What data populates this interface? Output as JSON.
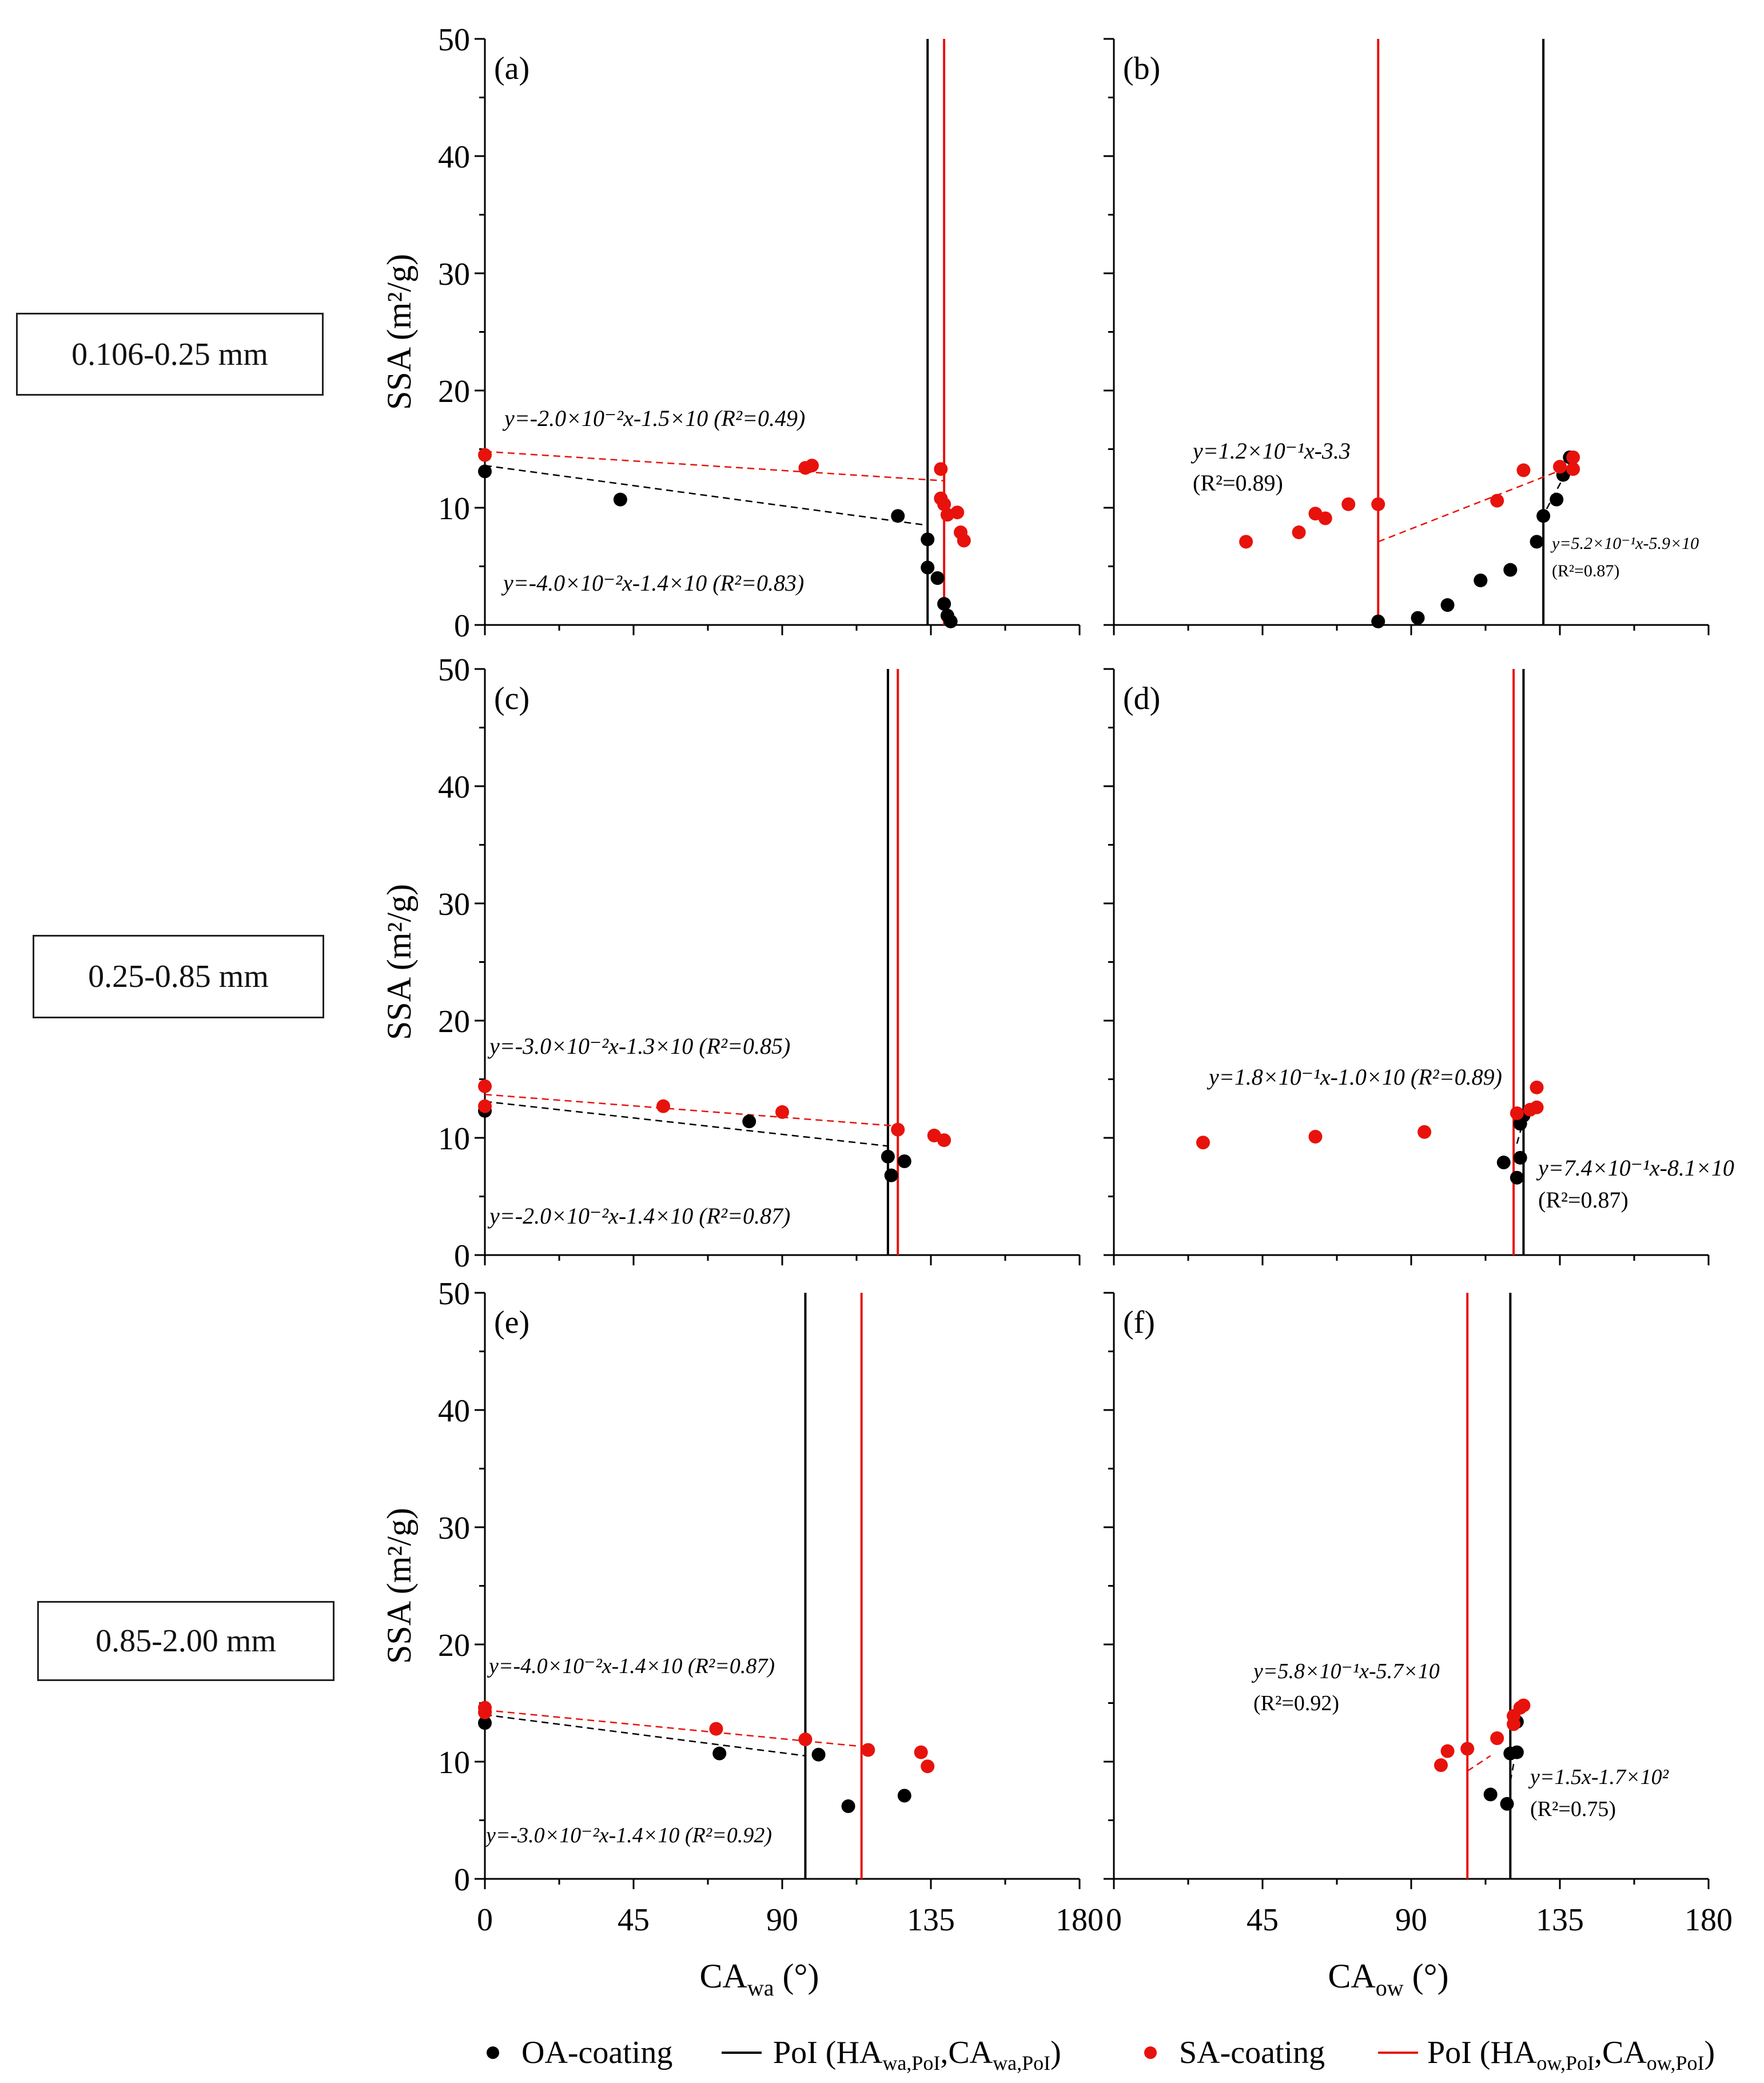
{
  "size_labels": [
    "0.106-0.25 mm",
    "0.25-0.85 mm",
    "0.85-2.00 mm"
  ],
  "legend": {
    "oa": "OA-coating",
    "poi_wa_prefix": "PoI (HA",
    "poi_wa_sub1": "wa,PoI",
    "poi_wa_mid": ",CA",
    "poi_wa_sub2": "wa,PoI",
    "poi_wa_suffix": ")",
    "sa": "SA-coating",
    "poi_ow_prefix": "PoI (HA",
    "poi_ow_sub1": "ow,PoI",
    "poi_ow_mid": ",CA",
    "poi_ow_sub2": "ow,PoI",
    "poi_ow_suffix": ")"
  },
  "colors": {
    "oa": "#000000",
    "sa": "#e8120c"
  },
  "chart_data": [
    {
      "panel": "(a)",
      "type": "scatter",
      "row": 0,
      "col": 0,
      "xlim": [
        0,
        180
      ],
      "ylim": [
        0,
        50
      ],
      "xticks": [],
      "ylabel": "SSA (m²/g)",
      "xlabel": "",
      "yticks": [
        "0",
        "10",
        "20",
        "30",
        "40",
        "50"
      ],
      "series": [
        {
          "name": "OA-coating",
          "color": "#000000",
          "points": [
            [
              0,
              13.1
            ],
            [
              41,
              10.7
            ],
            [
              125,
              9.3
            ],
            [
              134,
              7.3
            ],
            [
              134,
              4.9
            ],
            [
              137,
              4.0
            ],
            [
              139,
              1.8
            ],
            [
              140,
              0.8
            ],
            [
              141,
              0.3
            ]
          ]
        },
        {
          "name": "SA-coating",
          "color": "#e8120c",
          "points": [
            [
              0,
              14.5
            ],
            [
              97,
              13.4
            ],
            [
              99,
              13.6
            ],
            [
              138,
              13.3
            ],
            [
              138,
              10.8
            ],
            [
              139,
              10.3
            ],
            [
              140,
              9.4
            ],
            [
              143,
              9.6
            ],
            [
              144,
              7.9
            ],
            [
              145,
              7.2
            ]
          ]
        }
      ],
      "fits": [
        {
          "color": "#000000",
          "x": [
            0,
            134
          ],
          "y": [
            13.6,
            8.5
          ],
          "label": "y=-4.0×10⁻²x-1.4×10 (R²=0.83)"
        },
        {
          "color": "#e8120c",
          "x": [
            0,
            139
          ],
          "y": [
            14.8,
            12.3
          ],
          "label": "y=-2.0×10⁻²x-1.5×10 (R²=0.49)"
        }
      ],
      "vlines": [
        {
          "x": 134,
          "color": "#000000"
        },
        {
          "x": 139,
          "color": "#e8120c"
        }
      ]
    },
    {
      "panel": "(b)",
      "type": "scatter",
      "row": 0,
      "col": 1,
      "xlim": [
        0,
        180
      ],
      "ylim": [
        0,
        50
      ],
      "xticks": [],
      "ylabel": "",
      "xlabel": "",
      "yticks": [],
      "series": [
        {
          "name": "OA-coating",
          "color": "#000000",
          "points": [
            [
              80,
              0.3
            ],
            [
              92,
              0.6
            ],
            [
              101,
              1.7
            ],
            [
              111,
              3.8
            ],
            [
              120,
              4.7
            ],
            [
              128,
              7.1
            ],
            [
              130,
              9.3
            ],
            [
              134,
              10.7
            ],
            [
              136,
              12.8
            ],
            [
              138,
              14.3
            ]
          ]
        },
        {
          "name": "SA-coating",
          "color": "#e8120c",
          "points": [
            [
              40,
              7.1
            ],
            [
              56,
              7.9
            ],
            [
              61,
              9.5
            ],
            [
              64,
              9.1
            ],
            [
              71,
              10.3
            ],
            [
              80,
              10.3
            ],
            [
              116,
              10.6
            ],
            [
              124,
              13.2
            ],
            [
              135,
              13.5
            ],
            [
              139,
              14.3
            ],
            [
              139,
              13.3
            ]
          ]
        }
      ],
      "fits": [
        {
          "color": "#000000",
          "x": [
            131,
            138
          ],
          "y": [
            9.9,
            13.6
          ],
          "label": "y=5.2×10⁻¹x-5.9×10 (R²=0.87)"
        },
        {
          "color": "#e8120c",
          "x": [
            80,
            138
          ],
          "y": [
            7.1,
            13.5
          ],
          "label": "y=1.2×10⁻¹x-3.3 (R²=0.89)"
        }
      ],
      "vlines": [
        {
          "x": 130,
          "color": "#000000"
        },
        {
          "x": 80,
          "color": "#e8120c"
        }
      ]
    },
    {
      "panel": "(c)",
      "type": "scatter",
      "row": 1,
      "col": 0,
      "xlim": [
        0,
        180
      ],
      "ylim": [
        0,
        50
      ],
      "xticks": [],
      "ylabel": "SSA (m²/g)",
      "xlabel": "",
      "yticks": [
        "0",
        "10",
        "20",
        "30",
        "40",
        "50"
      ],
      "series": [
        {
          "name": "OA-coating",
          "color": "#000000",
          "points": [
            [
              0,
              12.3
            ],
            [
              80,
              11.4
            ],
            [
              122,
              8.4
            ],
            [
              123,
              6.8
            ],
            [
              127,
              8.0
            ]
          ]
        },
        {
          "name": "SA-coating",
          "color": "#e8120c",
          "points": [
            [
              0,
              14.4
            ],
            [
              0,
              12.7
            ],
            [
              54,
              12.7
            ],
            [
              90,
              12.2
            ],
            [
              125,
              10.7
            ],
            [
              136,
              10.2
            ],
            [
              139,
              9.8
            ]
          ]
        }
      ],
      "fits": [
        {
          "color": "#000000",
          "x": [
            0,
            122
          ],
          "y": [
            13.1,
            9.3
          ],
          "label": "y=-2.0×10⁻²x-1.4×10 (R²=0.87)"
        },
        {
          "color": "#e8120c",
          "x": [
            0,
            125
          ],
          "y": [
            13.7,
            11.0
          ],
          "label": "y=-3.0×10⁻²x-1.3×10 (R²=0.85)"
        }
      ],
      "vlines": [
        {
          "x": 122,
          "color": "#000000"
        },
        {
          "x": 125,
          "color": "#e8120c"
        }
      ]
    },
    {
      "panel": "(d)",
      "type": "scatter",
      "row": 1,
      "col": 1,
      "xlim": [
        0,
        180
      ],
      "ylim": [
        0,
        50
      ],
      "xticks": [],
      "ylabel": "",
      "xlabel": "",
      "yticks": [],
      "series": [
        {
          "name": "OA-coating",
          "color": "#000000",
          "points": [
            [
              118,
              7.9
            ],
            [
              122,
              6.6
            ],
            [
              123,
              8.3
            ],
            [
              123,
              11.2
            ],
            [
              124,
              11.9
            ]
          ]
        },
        {
          "name": "SA-coating",
          "color": "#e8120c",
          "points": [
            [
              27,
              9.6
            ],
            [
              61,
              10.1
            ],
            [
              94,
              10.5
            ],
            [
              122,
              12.1
            ],
            [
              126,
              12.4
            ],
            [
              128,
              12.6
            ],
            [
              128,
              14.3
            ]
          ]
        }
      ],
      "fits": [
        {
          "color": "#000000",
          "x": [
            122,
            124
          ],
          "y": [
            9.5,
            11.5
          ],
          "label": "y=7.4×10⁻¹x-8.1×10 (R²=0.87)"
        },
        {
          "color": "#e8120c",
          "x": [
            121,
            128
          ],
          "y": [
            11.7,
            12.8
          ],
          "label": "y=1.8×10⁻¹x-1.0×10 (R²=0.89)"
        }
      ],
      "vlines": [
        {
          "x": 124,
          "color": "#000000"
        },
        {
          "x": 121,
          "color": "#e8120c"
        }
      ]
    },
    {
      "panel": "(e)",
      "type": "scatter",
      "row": 2,
      "col": 0,
      "xlim": [
        0,
        180
      ],
      "ylim": [
        0,
        50
      ],
      "xticks": [
        "0",
        "45",
        "90",
        "135",
        "180"
      ],
      "ylabel": "SSA (m²/g)",
      "xlabel_main": "CA",
      "xlabel_sub": "wa",
      "xlabel_unit": " (°)",
      "yticks": [
        "0",
        "10",
        "20",
        "30",
        "40",
        "50"
      ],
      "series": [
        {
          "name": "OA-coating",
          "color": "#000000",
          "points": [
            [
              0,
              13.3
            ],
            [
              71,
              10.7
            ],
            [
              101,
              10.6
            ],
            [
              110,
              6.2
            ],
            [
              127,
              7.1
            ]
          ]
        },
        {
          "name": "SA-coating",
          "color": "#e8120c",
          "points": [
            [
              0,
              14.6
            ],
            [
              0,
              14.2
            ],
            [
              70,
              12.8
            ],
            [
              97,
              11.9
            ],
            [
              116,
              11.0
            ],
            [
              132,
              10.8
            ],
            [
              134,
              9.6
            ]
          ]
        }
      ],
      "fits": [
        {
          "color": "#000000",
          "x": [
            0,
            97
          ],
          "y": [
            14.0,
            10.5
          ],
          "label": "y=-3.0×10⁻²x-1.4×10 (R²=0.92)"
        },
        {
          "color": "#e8120c",
          "x": [
            0,
            114
          ],
          "y": [
            14.4,
            11.3
          ],
          "label": "y=-4.0×10⁻²x-1.4×10 (R²=0.87)"
        }
      ],
      "vlines": [
        {
          "x": 97,
          "color": "#000000"
        },
        {
          "x": 114,
          "color": "#e8120c"
        }
      ]
    },
    {
      "panel": "(f)",
      "type": "scatter",
      "row": 2,
      "col": 1,
      "xlim": [
        0,
        180
      ],
      "ylim": [
        0,
        50
      ],
      "xticks": [
        "0",
        "45",
        "90",
        "135",
        "180"
      ],
      "ylabel": "",
      "xlabel_main": "CA",
      "xlabel_sub": "ow",
      "xlabel_unit": " (°)",
      "yticks": [],
      "series": [
        {
          "name": "OA-coating",
          "color": "#000000",
          "points": [
            [
              114,
              7.2
            ],
            [
              119,
              6.4
            ],
            [
              120,
              10.7
            ],
            [
              122,
              10.8
            ],
            [
              122,
              13.4
            ]
          ]
        },
        {
          "name": "SA-coating",
          "color": "#e8120c",
          "points": [
            [
              99,
              9.7
            ],
            [
              101,
              10.9
            ],
            [
              107,
              11.1
            ],
            [
              116,
              12.0
            ],
            [
              121,
              13.2
            ],
            [
              121,
              13.9
            ],
            [
              123,
              14.6
            ],
            [
              124,
              14.8
            ]
          ]
        }
      ],
      "fits": [
        {
          "color": "#000000",
          "x": [
            120,
            121
          ],
          "y": [
            8.3,
            9.8
          ],
          "label": "y=1.5x-1.7×10² (R²=0.75)"
        },
        {
          "color": "#e8120c",
          "x": [
            107,
            114
          ],
          "y": [
            9.2,
            10.5
          ],
          "label": "y=5.8×10⁻¹x-5.7×10 (R²=0.92)"
        }
      ],
      "vlines": [
        {
          "x": 120,
          "color": "#000000"
        },
        {
          "x": 107,
          "color": "#e8120c"
        }
      ]
    }
  ]
}
